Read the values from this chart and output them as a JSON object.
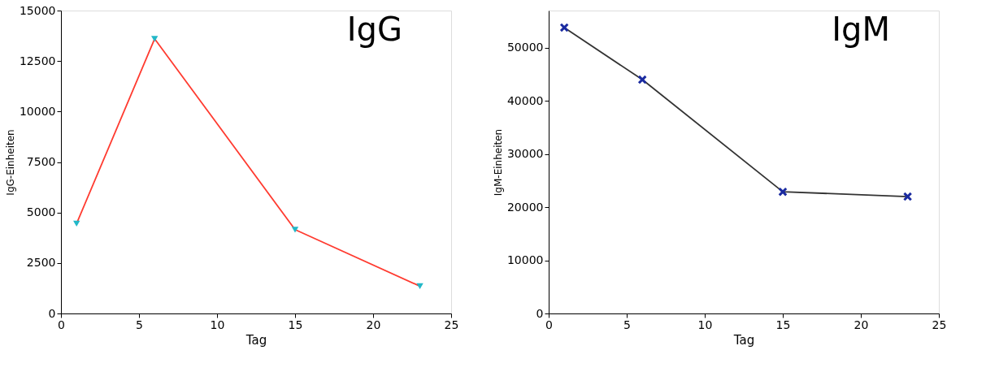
{
  "chart_data": [
    {
      "type": "line",
      "title": "IgG",
      "xlabel": "Tag",
      "ylabel": "IgG-Einheiten",
      "x": [
        1,
        6,
        15,
        23
      ],
      "grid": false,
      "legend": false,
      "series": [
        {
          "marker": "none",
          "color": "#ff3b30",
          "values": [
            4450,
            13600,
            4150,
            1350
          ]
        },
        {
          "type": "scatter",
          "marker": "triangle",
          "color": "#22b8c8",
          "values": [
            4450,
            13600,
            4150,
            1350
          ]
        }
      ],
      "xlim": [
        0,
        25
      ],
      "xticks": [
        0,
        5,
        10,
        15,
        20,
        25
      ],
      "ylim": [
        0,
        15000
      ],
      "yticks": [
        0,
        2500,
        5000,
        7500,
        10000,
        12500,
        15000
      ]
    },
    {
      "type": "line",
      "title": "IgM",
      "xlabel": "Tag",
      "ylabel": "IgM-Einheiten",
      "x": [
        1,
        6,
        15,
        23
      ],
      "grid": false,
      "legend": false,
      "series": [
        {
          "marker": "none",
          "color": "#333333",
          "values": [
            53800,
            44000,
            22900,
            22000
          ]
        },
        {
          "type": "scatter",
          "marker": "cross",
          "color": "#1a2aa0",
          "values": [
            53800,
            44000,
            22900,
            22000
          ]
        }
      ],
      "xlim": [
        0,
        25
      ],
      "xticks": [
        0,
        5,
        10,
        15,
        20,
        25
      ],
      "ylim": [
        0,
        57000
      ],
      "yticks": [
        0,
        10000,
        20000,
        30000,
        40000,
        50000
      ]
    }
  ]
}
